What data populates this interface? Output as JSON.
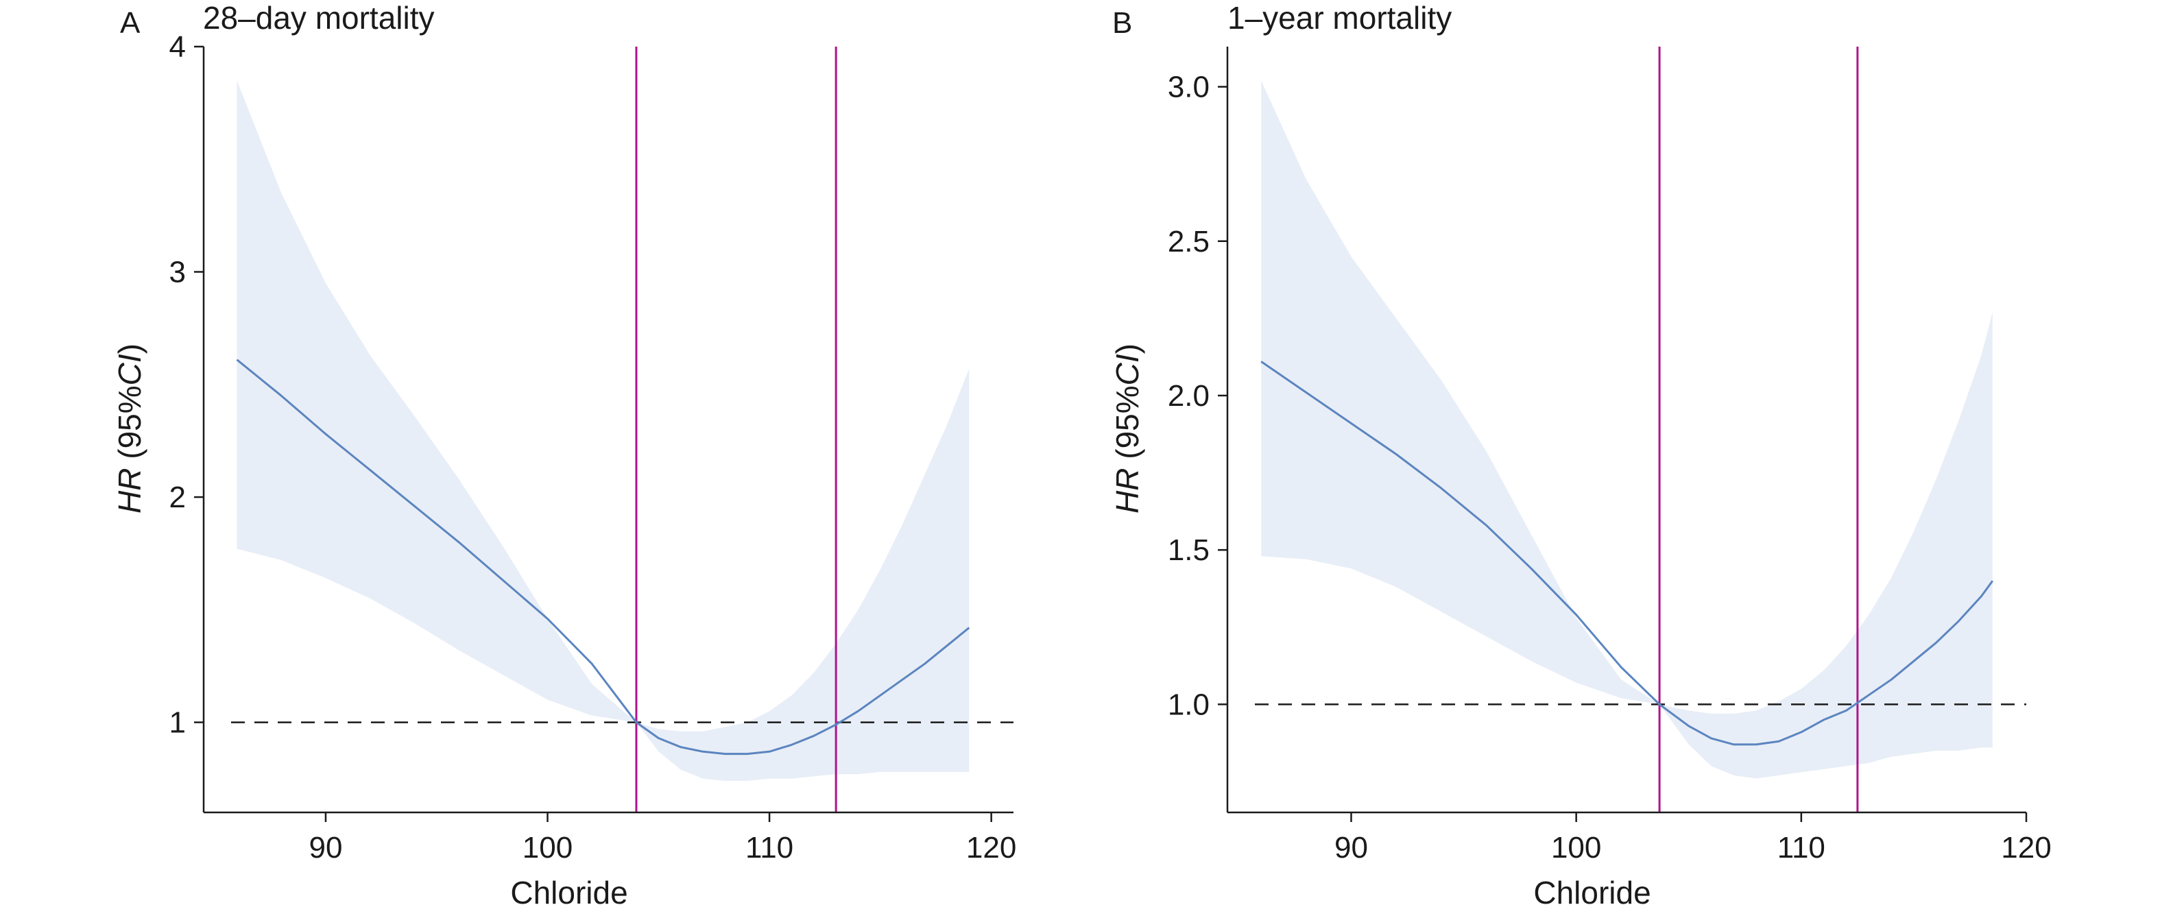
{
  "colors": {
    "curve": "#5b85c0",
    "band": "#e8eef7",
    "vline": "#b0148c",
    "refline": "#1a1a1a"
  },
  "chart_data": [
    {
      "type": "line",
      "panel_letter": "A",
      "title": "28–day mortality",
      "xlabel": "Chloride",
      "ylabel_italic_1": "HR",
      "ylabel_plain": " (95%",
      "ylabel_italic_2": "CI",
      "ylabel_close": ")",
      "xlim": [
        84.5,
        121
      ],
      "ylim": [
        0.6,
        4.0
      ],
      "xticks": [
        90,
        100,
        110,
        120
      ],
      "yticks": [
        1,
        2,
        3,
        4
      ],
      "xtick_labels": [
        "90",
        "100",
        "110",
        "120"
      ],
      "ytick_labels": [
        "1",
        "2",
        "3",
        "4"
      ],
      "reference_y": 1.0,
      "vlines": [
        104.0,
        113.0
      ],
      "series": [
        {
          "role": "estimate",
          "x": [
            86,
            88,
            90,
            92,
            94,
            96,
            98,
            100,
            102,
            104,
            105,
            106,
            107,
            108,
            109,
            110,
            111,
            112,
            113,
            114,
            115,
            116,
            117,
            118,
            119
          ],
          "y": [
            2.61,
            2.45,
            2.28,
            2.12,
            1.96,
            1.8,
            1.63,
            1.46,
            1.26,
            1.0,
            0.93,
            0.89,
            0.87,
            0.86,
            0.86,
            0.87,
            0.9,
            0.94,
            0.99,
            1.05,
            1.12,
            1.19,
            1.26,
            1.34,
            1.42
          ]
        },
        {
          "role": "upper",
          "x": [
            86,
            88,
            90,
            92,
            94,
            96,
            98,
            100,
            102,
            104,
            105,
            106,
            107,
            108,
            109,
            110,
            111,
            112,
            113,
            114,
            115,
            116,
            117,
            118,
            119
          ],
          "y": [
            3.85,
            3.35,
            2.95,
            2.63,
            2.36,
            2.08,
            1.78,
            1.46,
            1.17,
            1.0,
            0.97,
            0.96,
            0.96,
            0.98,
            1.0,
            1.05,
            1.12,
            1.22,
            1.35,
            1.5,
            1.68,
            1.88,
            2.1,
            2.32,
            2.57
          ]
        },
        {
          "role": "lower",
          "x": [
            86,
            88,
            90,
            92,
            94,
            96,
            98,
            100,
            102,
            104,
            105,
            106,
            107,
            108,
            109,
            110,
            111,
            112,
            113,
            114,
            115,
            116,
            117,
            118,
            119
          ],
          "y": [
            1.77,
            1.72,
            1.64,
            1.55,
            1.44,
            1.32,
            1.21,
            1.1,
            1.03,
            1.0,
            0.87,
            0.79,
            0.75,
            0.74,
            0.74,
            0.75,
            0.75,
            0.76,
            0.77,
            0.77,
            0.78,
            0.78,
            0.78,
            0.78,
            0.78
          ]
        }
      ]
    },
    {
      "type": "line",
      "panel_letter": "B",
      "title": "1–year mortality",
      "xlabel": "Chloride",
      "ylabel_italic_1": "HR",
      "ylabel_plain": " (95%",
      "ylabel_italic_2": "CI",
      "ylabel_close": ")",
      "xlim": [
        84.5,
        120
      ],
      "ylim": [
        0.65,
        3.13
      ],
      "xticks": [
        90,
        100,
        110,
        120
      ],
      "yticks": [
        1.0,
        1.5,
        2.0,
        2.5,
        3.0
      ],
      "xtick_labels": [
        "90",
        "100",
        "110",
        "120"
      ],
      "ytick_labels": [
        "1.0",
        "1.5",
        "2.0",
        "2.5",
        "3.0"
      ],
      "reference_y": 1.0,
      "vlines": [
        103.7,
        112.5
      ],
      "series": [
        {
          "role": "estimate",
          "x": [
            86,
            88,
            90,
            92,
            94,
            96,
            98,
            100,
            102,
            103.7,
            105,
            106,
            107,
            108,
            109,
            110,
            111,
            112,
            113,
            114,
            115,
            116,
            117,
            118,
            118.5
          ],
          "y": [
            2.11,
            2.01,
            1.91,
            1.81,
            1.7,
            1.58,
            1.44,
            1.29,
            1.12,
            1.0,
            0.93,
            0.89,
            0.87,
            0.87,
            0.88,
            0.91,
            0.95,
            0.98,
            1.03,
            1.08,
            1.14,
            1.2,
            1.27,
            1.35,
            1.4
          ]
        },
        {
          "role": "upper",
          "x": [
            86,
            88,
            90,
            92,
            94,
            96,
            98,
            100,
            102,
            103.7,
            105,
            106,
            107,
            108,
            109,
            110,
            111,
            112,
            113,
            114,
            115,
            116,
            117,
            118,
            118.5
          ],
          "y": [
            3.02,
            2.7,
            2.45,
            2.25,
            2.05,
            1.82,
            1.55,
            1.28,
            1.08,
            1.0,
            0.98,
            0.97,
            0.97,
            0.98,
            1.01,
            1.05,
            1.11,
            1.19,
            1.29,
            1.41,
            1.56,
            1.73,
            1.92,
            2.13,
            2.27
          ]
        },
        {
          "role": "lower",
          "x": [
            86,
            88,
            90,
            92,
            94,
            96,
            98,
            100,
            102,
            103.7,
            105,
            106,
            107,
            108,
            109,
            110,
            111,
            112,
            113,
            114,
            115,
            116,
            117,
            118,
            118.5
          ],
          "y": [
            1.48,
            1.47,
            1.44,
            1.38,
            1.3,
            1.22,
            1.14,
            1.07,
            1.02,
            1.0,
            0.87,
            0.8,
            0.77,
            0.76,
            0.77,
            0.78,
            0.79,
            0.8,
            0.81,
            0.83,
            0.84,
            0.85,
            0.85,
            0.86,
            0.86
          ]
        }
      ]
    }
  ]
}
